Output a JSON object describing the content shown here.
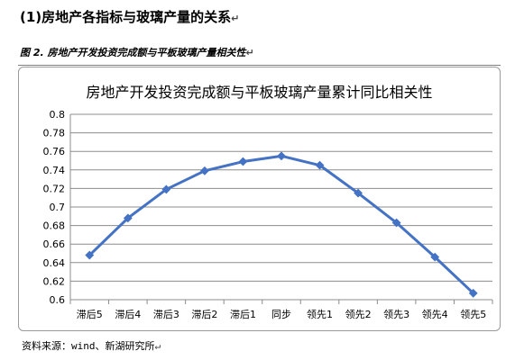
{
  "page": {
    "section_heading": "(1)房地产各指标与玻璃产量的关系",
    "figure_caption": "图 2. 房地产开发投资完成额与平板玻璃产量相关性",
    "source_note": "资料来源：wind、新湖研究所",
    "return_mark": "↵"
  },
  "chart_data": {
    "type": "line",
    "title": "房地产开发投资完成额与平板玻璃产量累计同比相关性",
    "xlabel": "",
    "ylabel": "",
    "categories": [
      "滞后5",
      "滞后4",
      "滞后3",
      "滞后2",
      "滞后1",
      "同步",
      "领先1",
      "领先2",
      "领先3",
      "领先4",
      "领先5"
    ],
    "series": [
      {
        "values": [
          0.648,
          0.688,
          0.719,
          0.739,
          0.749,
          0.755,
          0.745,
          0.715,
          0.683,
          0.646,
          0.607
        ],
        "color": "#4472c4"
      }
    ],
    "ylim": [
      0.6,
      0.8
    ],
    "ytick_step": 0.02,
    "ytick_labels": [
      "0.6",
      "0.62",
      "0.64",
      "0.66",
      "0.68",
      "0.7",
      "0.72",
      "0.74",
      "0.76",
      "0.78",
      "0.8"
    ],
    "grid": true,
    "legend": "none",
    "marker": "diamond"
  }
}
